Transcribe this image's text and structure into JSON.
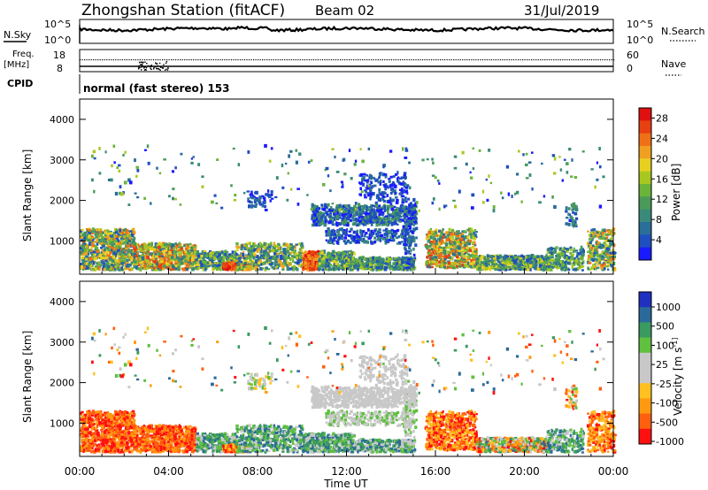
{
  "header": {
    "station": "Zhongshan Station (fitACF)",
    "beam": "Beam 02",
    "date": "31/Jul/2019"
  },
  "top_panels": {
    "nsky_label": "N.Sky",
    "nsky_ticks": [
      "10^5",
      "10^0"
    ],
    "nsearch_label": "N.Search",
    "nsearch_ticks": [
      "10^5",
      "10^0"
    ],
    "freq_label_1": "Freq.",
    "freq_label_2": "[MHz]",
    "freq_ticks": [
      "18",
      "8"
    ],
    "nave_label": "Nave",
    "nave_ticks": [
      "60",
      "0"
    ],
    "cpid_label": "CPID",
    "cpid_text": "normal (fast stereo) 153"
  },
  "colors": {
    "power": [
      "#1a1aff",
      "#1f4fbf",
      "#2a6e9a",
      "#3a8a7a",
      "#4a9a5a",
      "#6ab43a",
      "#a8c820",
      "#e8d020",
      "#f0a020",
      "#f07018",
      "#e84010",
      "#e01010"
    ],
    "velocity": [
      "#ff1010",
      "#ff6010",
      "#ff9a10",
      "#ffc020",
      "#c8c8c8",
      "#c8c8c8",
      "#60c040",
      "#3a9a60",
      "#2a6a9a",
      "#2030c0"
    ]
  },
  "chart_data": [
    {
      "type": "heatmap",
      "name": "power-panel",
      "ylabel": "Slant Range [km]",
      "xlabel": "",
      "x_range_hours": [
        0,
        24
      ],
      "ylim": [
        180,
        4500
      ],
      "y_ticks": [
        1000,
        2000,
        3000,
        4000
      ],
      "colorbar": {
        "label": "Power [dB]",
        "ticks": [
          4,
          8,
          12,
          16,
          20,
          24,
          28
        ],
        "range": [
          0,
          30
        ]
      }
    },
    {
      "type": "heatmap",
      "name": "velocity-panel",
      "ylabel": "Slant Range [km]",
      "xlabel": "Time UT",
      "x_range_hours": [
        0,
        24
      ],
      "x_tick_labels": [
        "00:00",
        "04:00",
        "08:00",
        "12:00",
        "16:00",
        "20:00",
        "00:00"
      ],
      "ylim": [
        180,
        4500
      ],
      "y_ticks": [
        1000,
        2000,
        3000,
        4000
      ],
      "colorbar": {
        "label": "Velocity [m s^-1]",
        "ticks": [
          1000,
          500,
          100,
          25,
          -25,
          -100,
          -500,
          -1000
        ]
      }
    }
  ]
}
